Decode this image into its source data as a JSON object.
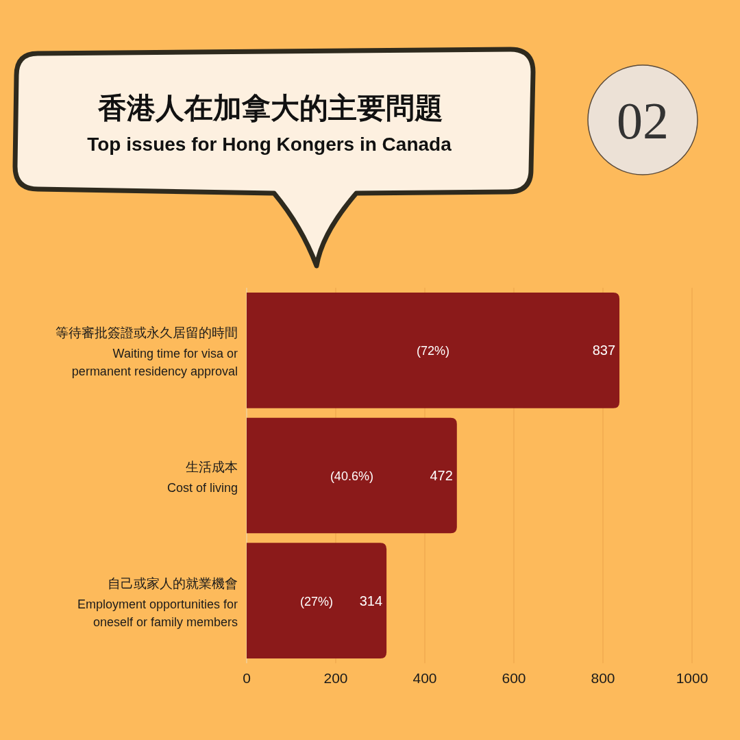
{
  "chart_data": {
    "type": "bar",
    "orientation": "horizontal",
    "title": "香港人在加拿大的主要問題",
    "subtitle": "Top issues for Hong Kongers in Canada",
    "categories": [
      "等待審批簽證或永久居留的時間\nWaiting time for visa or\npermanent residency approval",
      "生活成本\nCost of living",
      "自己或家人的就業機會\nEmployment opportunities for\noneself or family members"
    ],
    "values": [
      837,
      472,
      314
    ],
    "color": "#8b1a1a",
    "xlim": [
      0,
      1000
    ],
    "xticks": [
      0,
      200,
      400,
      600,
      800,
      1000
    ],
    "grid": "x",
    "data_labels": true,
    "annotations": [
      "(72%)",
      "(40.6%)",
      "(27%)",
      "02"
    ]
  }
}
